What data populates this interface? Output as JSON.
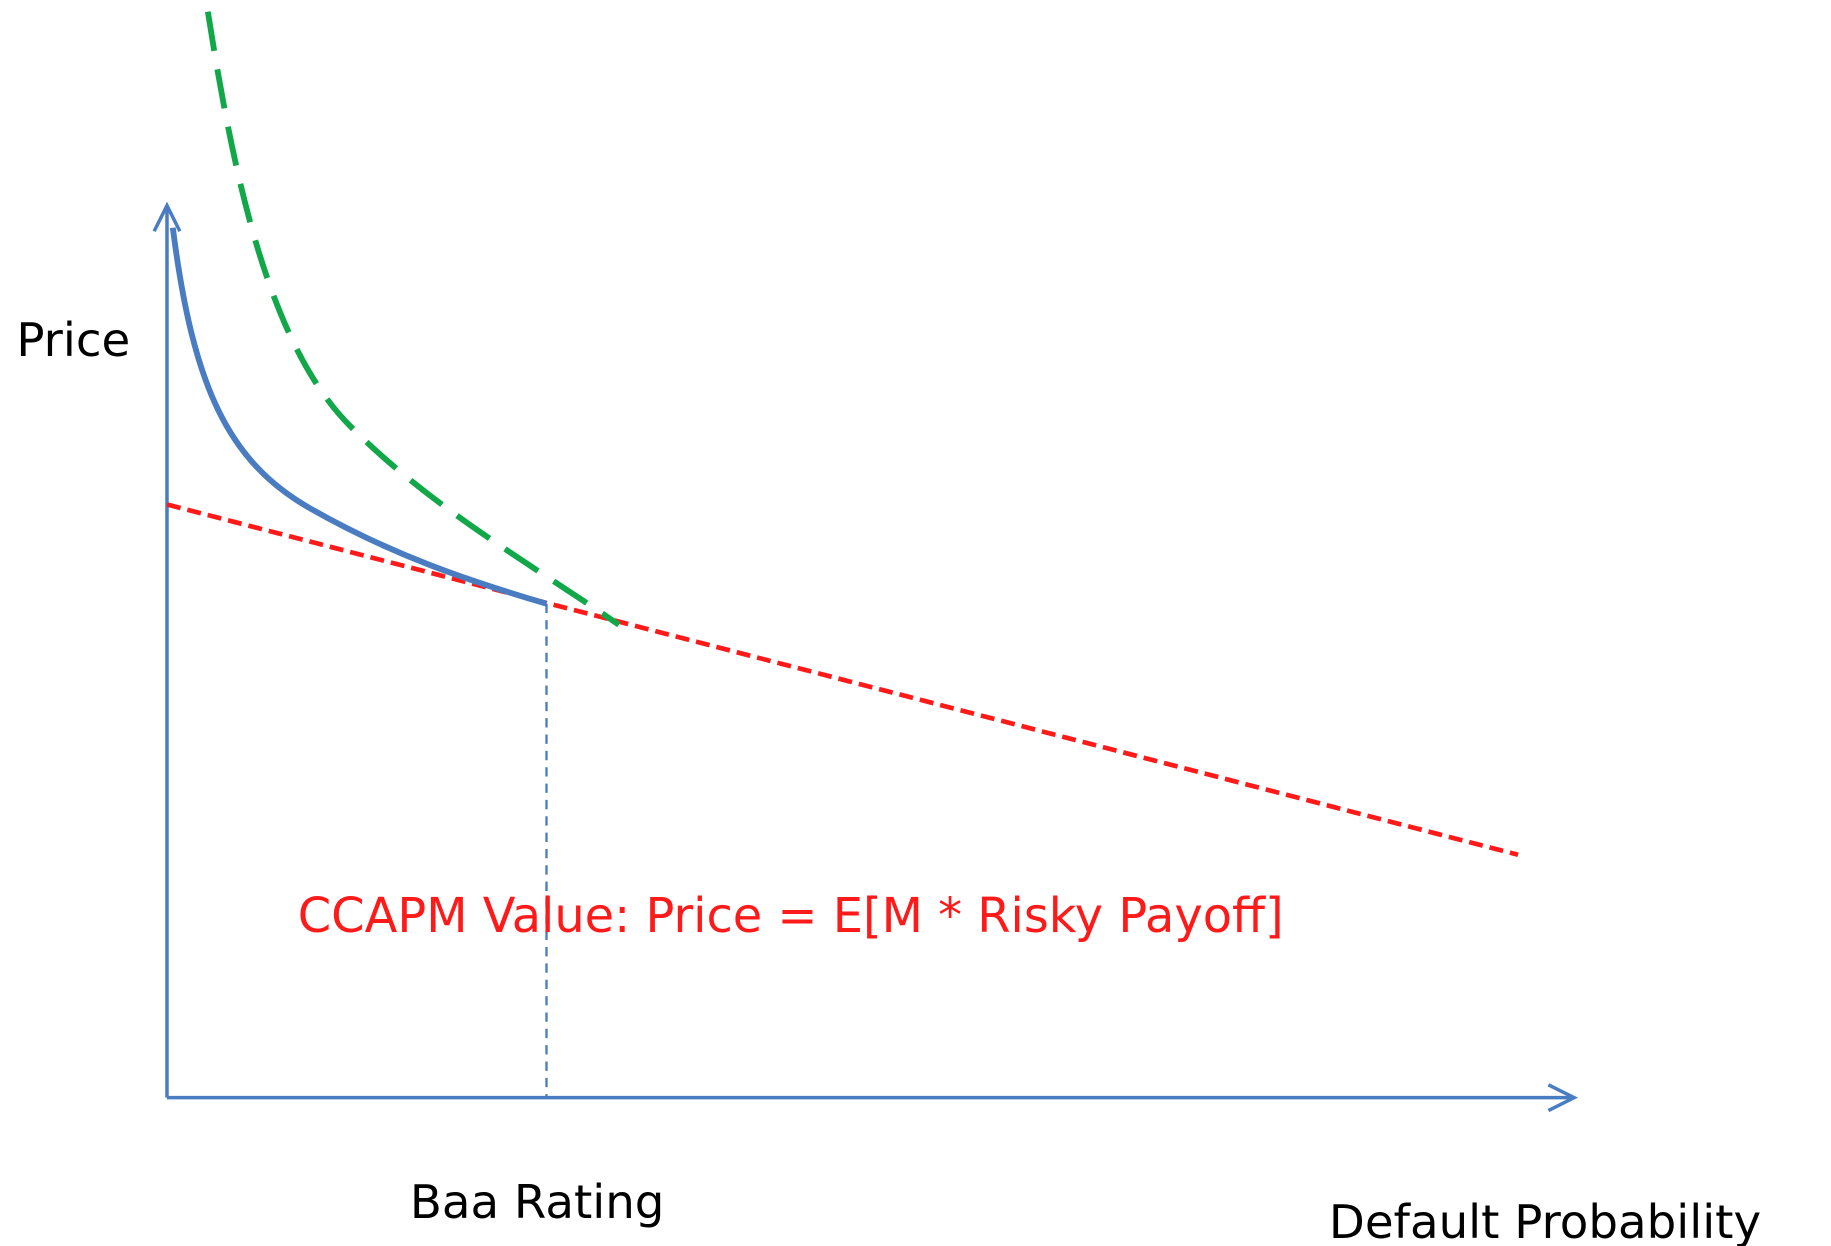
{
  "labels": {
    "y_axis": "Price",
    "annotation": "CCAPM Value: Price =  E[M * Risky Payoff]",
    "x_marker": "Baa Rating",
    "x_axis": "Default Probability"
  }
}
